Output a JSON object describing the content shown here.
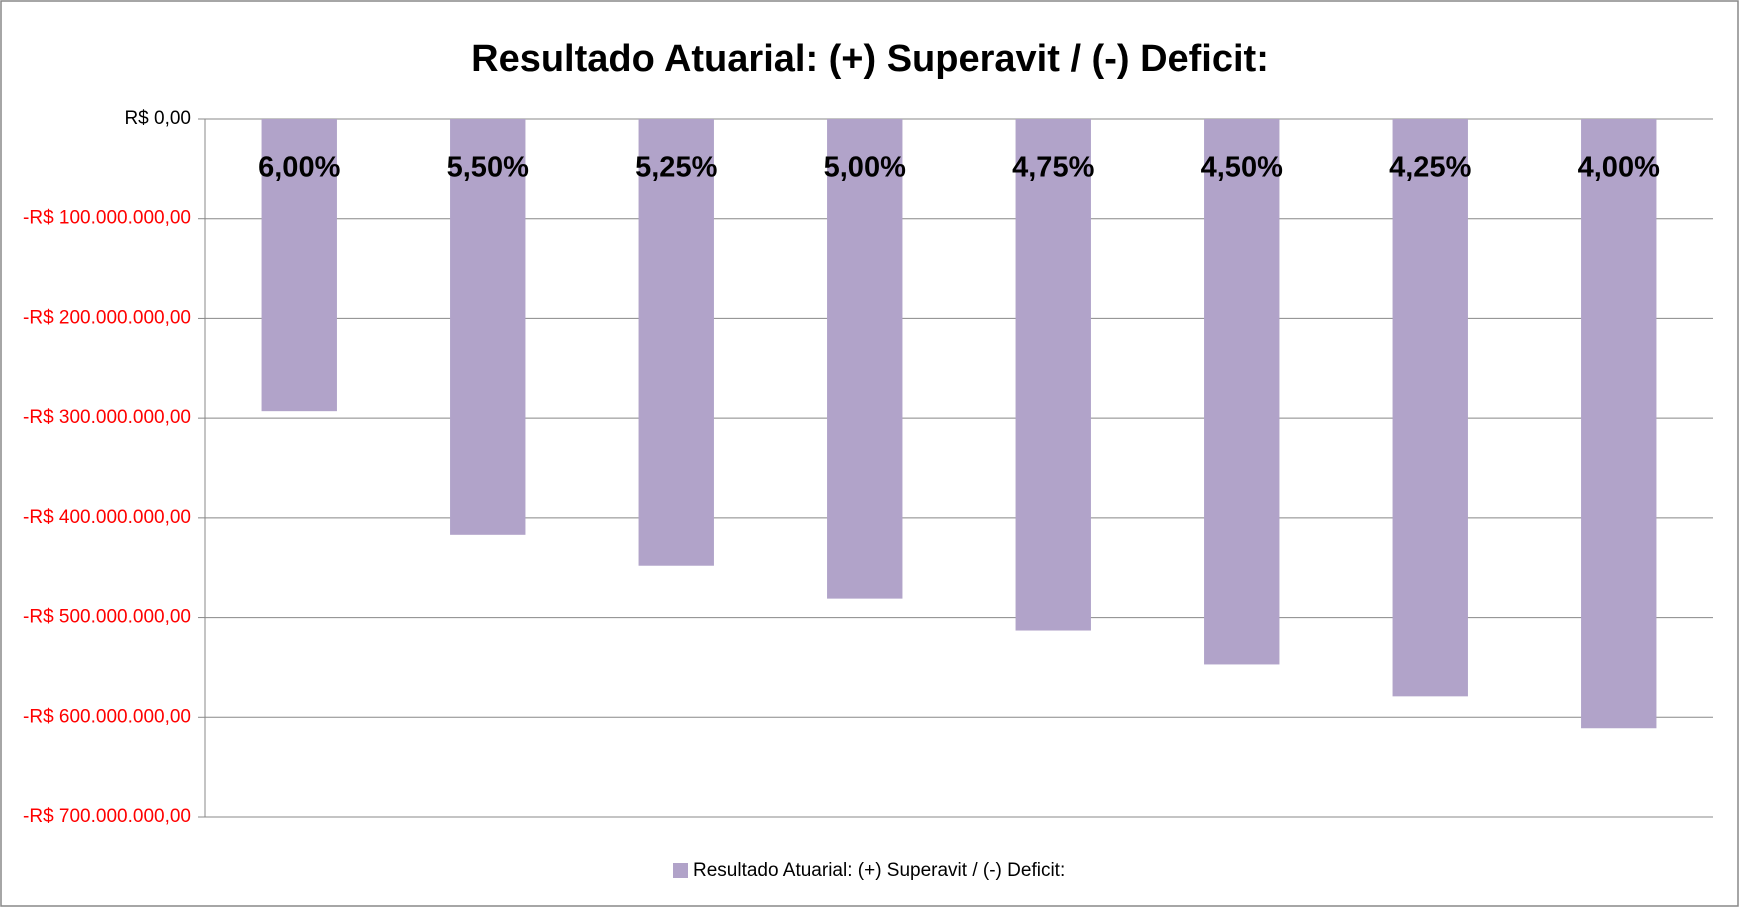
{
  "chart_data": {
    "type": "bar",
    "title": "Resultado Atuarial: (+) Superavit / (-) Deficit:",
    "categories": [
      "6,00%",
      "5,50%",
      "5,25%",
      "5,00%",
      "4,75%",
      "4,50%",
      "4,25%",
      "4,00%"
    ],
    "series": [
      {
        "name": "Resultado Atuarial: (+) Superavit / (-) Deficit:",
        "color": "#b1a3c9",
        "values": [
          -293000000,
          -417000000,
          -448000000,
          -481000000,
          -513000000,
          -547000000,
          -579000000,
          -611000000
        ]
      }
    ],
    "ylim": [
      -700000000,
      0
    ],
    "yticks": [
      {
        "value": 0,
        "label": "R$ 0,00"
      },
      {
        "value": -100000000,
        "label": "-R$ 100.000.000,00"
      },
      {
        "value": -200000000,
        "label": "-R$ 200.000.000,00"
      },
      {
        "value": -300000000,
        "label": "-R$ 300.000.000,00"
      },
      {
        "value": -400000000,
        "label": "-R$ 400.000.000,00"
      },
      {
        "value": -500000000,
        "label": "-R$ 500.000.000,00"
      },
      {
        "value": -600000000,
        "label": "-R$ 600.000.000,00"
      },
      {
        "value": -700000000,
        "label": "-R$ 700.000.000,00"
      }
    ],
    "negative_tick_color": "#ff0000",
    "grid": true,
    "legend": "bottom"
  }
}
